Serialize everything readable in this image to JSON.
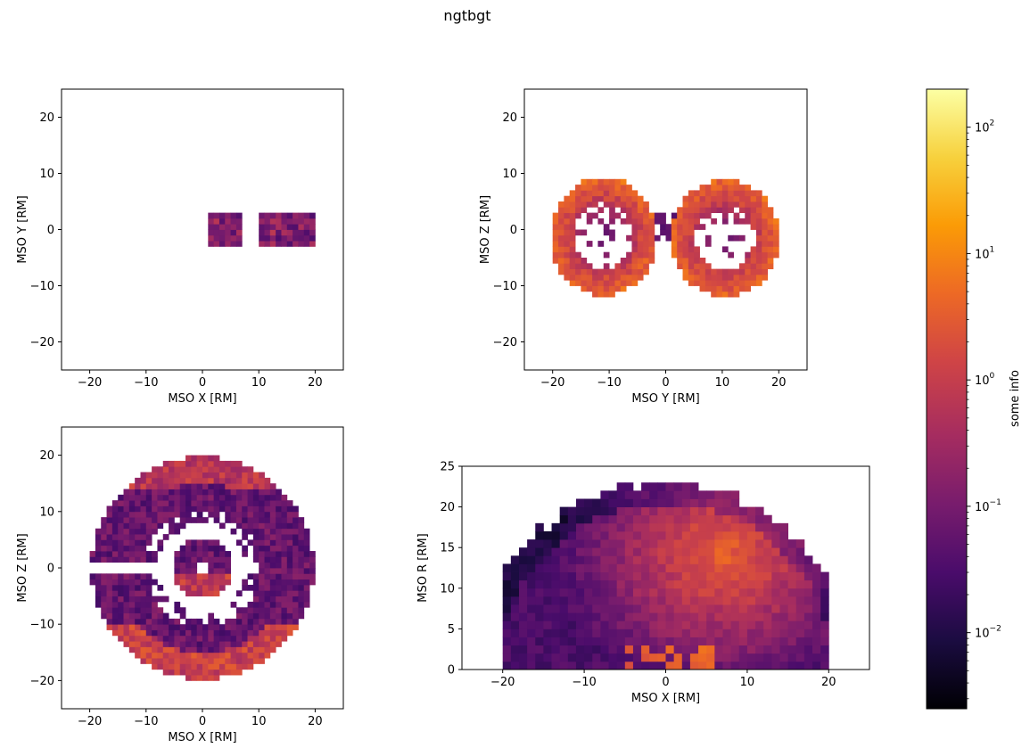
{
  "figure": {
    "title": "ngtbgt"
  },
  "chart_data": [
    {
      "type": "heatmap",
      "panel": "top-left",
      "xlabel": "MSO X [RM]",
      "ylabel": "MSO Y [RM]",
      "xlim": [
        -25,
        25
      ],
      "ylim": [
        -25,
        25
      ],
      "xticks": [
        -20,
        -10,
        0,
        10,
        20
      ],
      "yticks": [
        -20,
        -10,
        0,
        10,
        20
      ],
      "shape": "two-rects",
      "shape_params": {
        "rects": [
          [
            0.6,
            7.2,
            -2.5,
            2.5
          ],
          [
            9.8,
            19.6,
            -2.5,
            2.5
          ]
        ]
      }
    },
    {
      "type": "heatmap",
      "panel": "top-right",
      "xlabel": "MSO Y [RM]",
      "ylabel": "MSO Z [RM]",
      "xlim": [
        -25,
        25
      ],
      "ylim": [
        -25,
        25
      ],
      "xticks": [
        -20,
        -10,
        0,
        10,
        20
      ],
      "yticks": [
        -20,
        -10,
        0,
        10,
        20
      ],
      "shape": "two-lobes",
      "shape_params": {
        "centers": [
          [
            -11,
            -1.2
          ],
          [
            10.5,
            -1.5
          ]
        ],
        "rx": 9.5,
        "ry": 10.5,
        "inner": 0.55,
        "band_z": [
          -1.5,
          2.5
        ]
      }
    },
    {
      "type": "heatmap",
      "panel": "bottom-left",
      "xlabel": "MSO X [RM]",
      "ylabel": "MSO Z [RM]",
      "xlim": [
        -25,
        25
      ],
      "ylim": [
        -25,
        25
      ],
      "xticks": [
        -20,
        -10,
        0,
        10,
        20
      ],
      "yticks": [
        -20,
        -10,
        0,
        10,
        20
      ],
      "shape": "rings",
      "shape_params": {
        "rings": [
          [
            1.2,
            5.3
          ],
          [
            7.8,
            19.8
          ]
        ],
        "gaps": [
          [
            5.3,
            7.8
          ]
        ]
      }
    },
    {
      "type": "heatmap",
      "panel": "bottom-right",
      "xlabel": "MSO X [RM]",
      "ylabel": "MSO R [RM]",
      "xlim": [
        -25,
        25
      ],
      "ylim": [
        0,
        25
      ],
      "xticks": [
        -20,
        -10,
        0,
        10,
        20
      ],
      "yticks": [
        0,
        5,
        10,
        15,
        20,
        25
      ],
      "shape": "dome",
      "shape_params": {
        "radius": 22.5
      }
    }
  ],
  "colorbar": {
    "label": "some info",
    "scale": "log",
    "range": [
      0.0025,
      200
    ],
    "colormap": "inferno",
    "ticks": [
      {
        "base": "10",
        "exp": "2",
        "value": 100
      },
      {
        "base": "10",
        "exp": "1",
        "value": 10
      },
      {
        "base": "10",
        "exp": "0",
        "value": 1
      },
      {
        "base": "10",
        "exp": "−1",
        "value": 0.1
      },
      {
        "base": "10",
        "exp": "−2",
        "value": 0.01
      }
    ]
  },
  "colors": {
    "colormap_stops": [
      "#000004",
      "#1b0c41",
      "#4a0c6b",
      "#781c6d",
      "#a52c60",
      "#cf4446",
      "#ed6925",
      "#fb9b06",
      "#f7d13d",
      "#fcffa4"
    ]
  }
}
